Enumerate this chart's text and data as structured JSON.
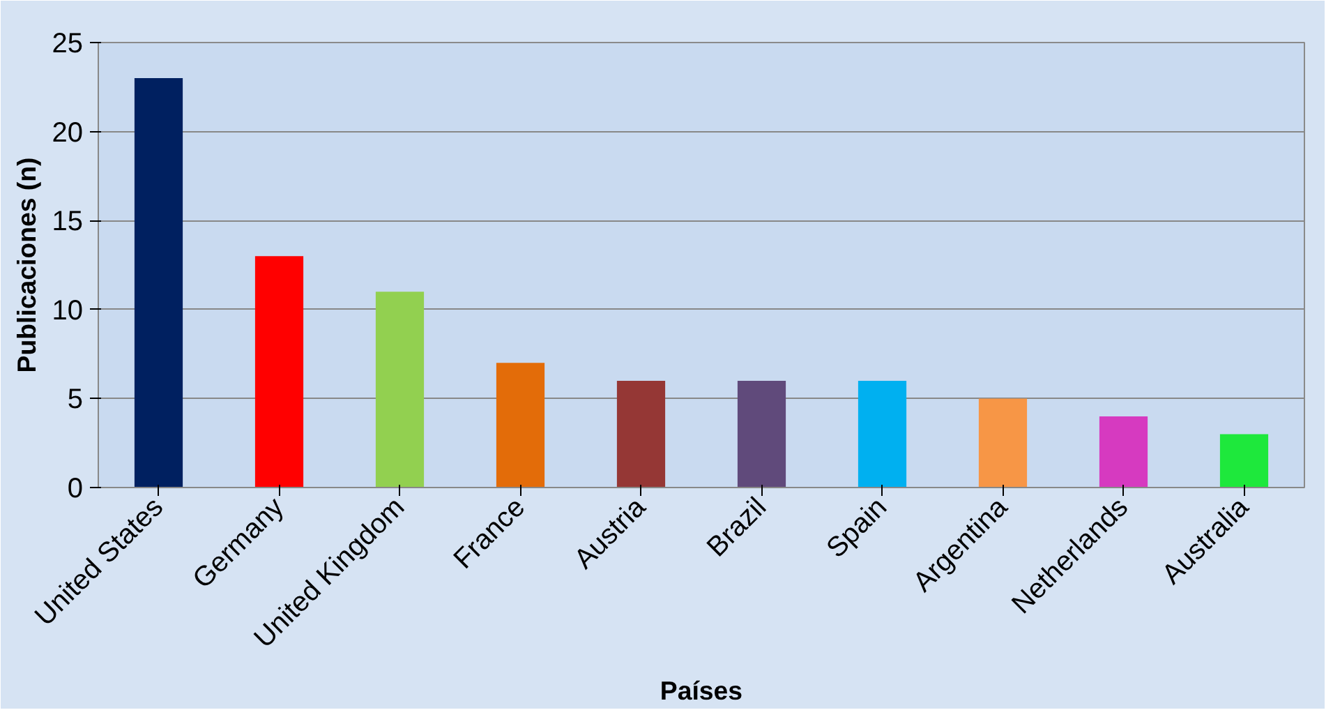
{
  "chart_data": {
    "type": "bar",
    "xlabel": "Países",
    "ylabel": "Publicaciones (n)",
    "categories": [
      "United States",
      "Germany",
      "United Kingdom",
      "France",
      "Austria",
      "Brazil",
      "Spain",
      "Argentina",
      "Netherlands",
      "Australia"
    ],
    "values": [
      23,
      13,
      11,
      7,
      6,
      6,
      6,
      5,
      4,
      3
    ],
    "colors": [
      "#002060",
      "#ff0000",
      "#92d050",
      "#e36c09",
      "#953735",
      "#604a7b",
      "#00b0f0",
      "#f79646",
      "#d63ac0",
      "#1ee83c"
    ],
    "ylim": [
      0,
      25
    ],
    "yticks": [
      0,
      5,
      10,
      15,
      20,
      25
    ],
    "grid": "y"
  }
}
